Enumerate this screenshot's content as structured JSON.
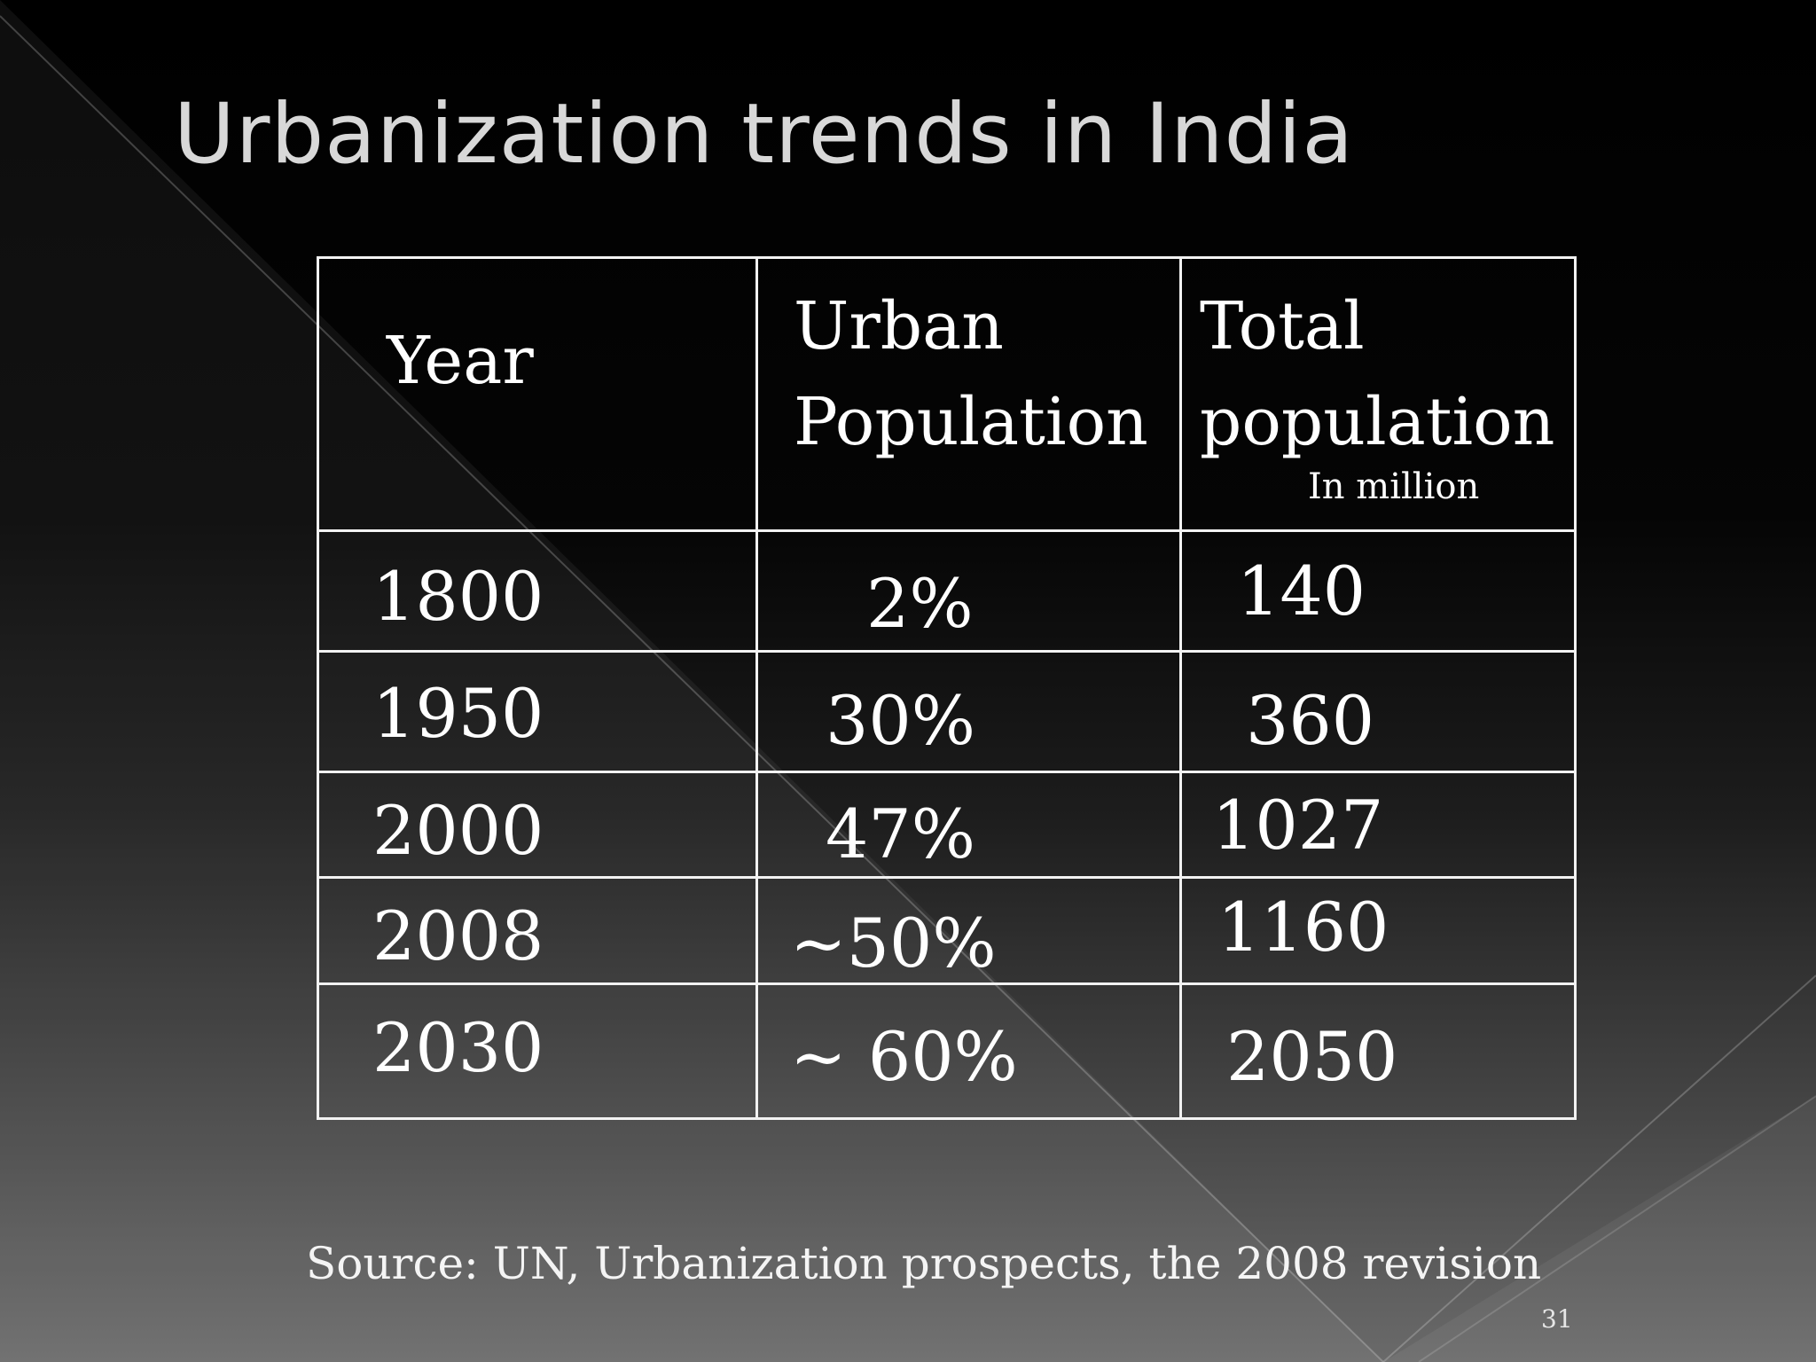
{
  "slide": {
    "title": "Urbanization trends in India",
    "source": "Source: UN, Urbanization prospects, the 2008 revision",
    "page_number": "31"
  },
  "table": {
    "headers": {
      "year": "Year",
      "urban": [
        "Urban",
        "Population"
      ],
      "total": [
        "Total",
        "population"
      ],
      "total_unit": "In million"
    },
    "rows": [
      {
        "year": "1800",
        "urban": "2%",
        "total": "140"
      },
      {
        "year": "1950",
        "urban": "30%",
        "total": "360"
      },
      {
        "year": "2000",
        "urban": "47%",
        "total": "1027"
      },
      {
        "year": "2008",
        "urban": "~50%",
        "total": "1160"
      },
      {
        "year": "2030",
        "urban": "~ 60%",
        "total": "2050"
      }
    ]
  },
  "colors": {
    "background_top": "#000000",
    "background_bottom": "#6a6a6a",
    "title": "#d8d8d8",
    "text": "#ffffff",
    "table_border": "#f2f2f2"
  }
}
